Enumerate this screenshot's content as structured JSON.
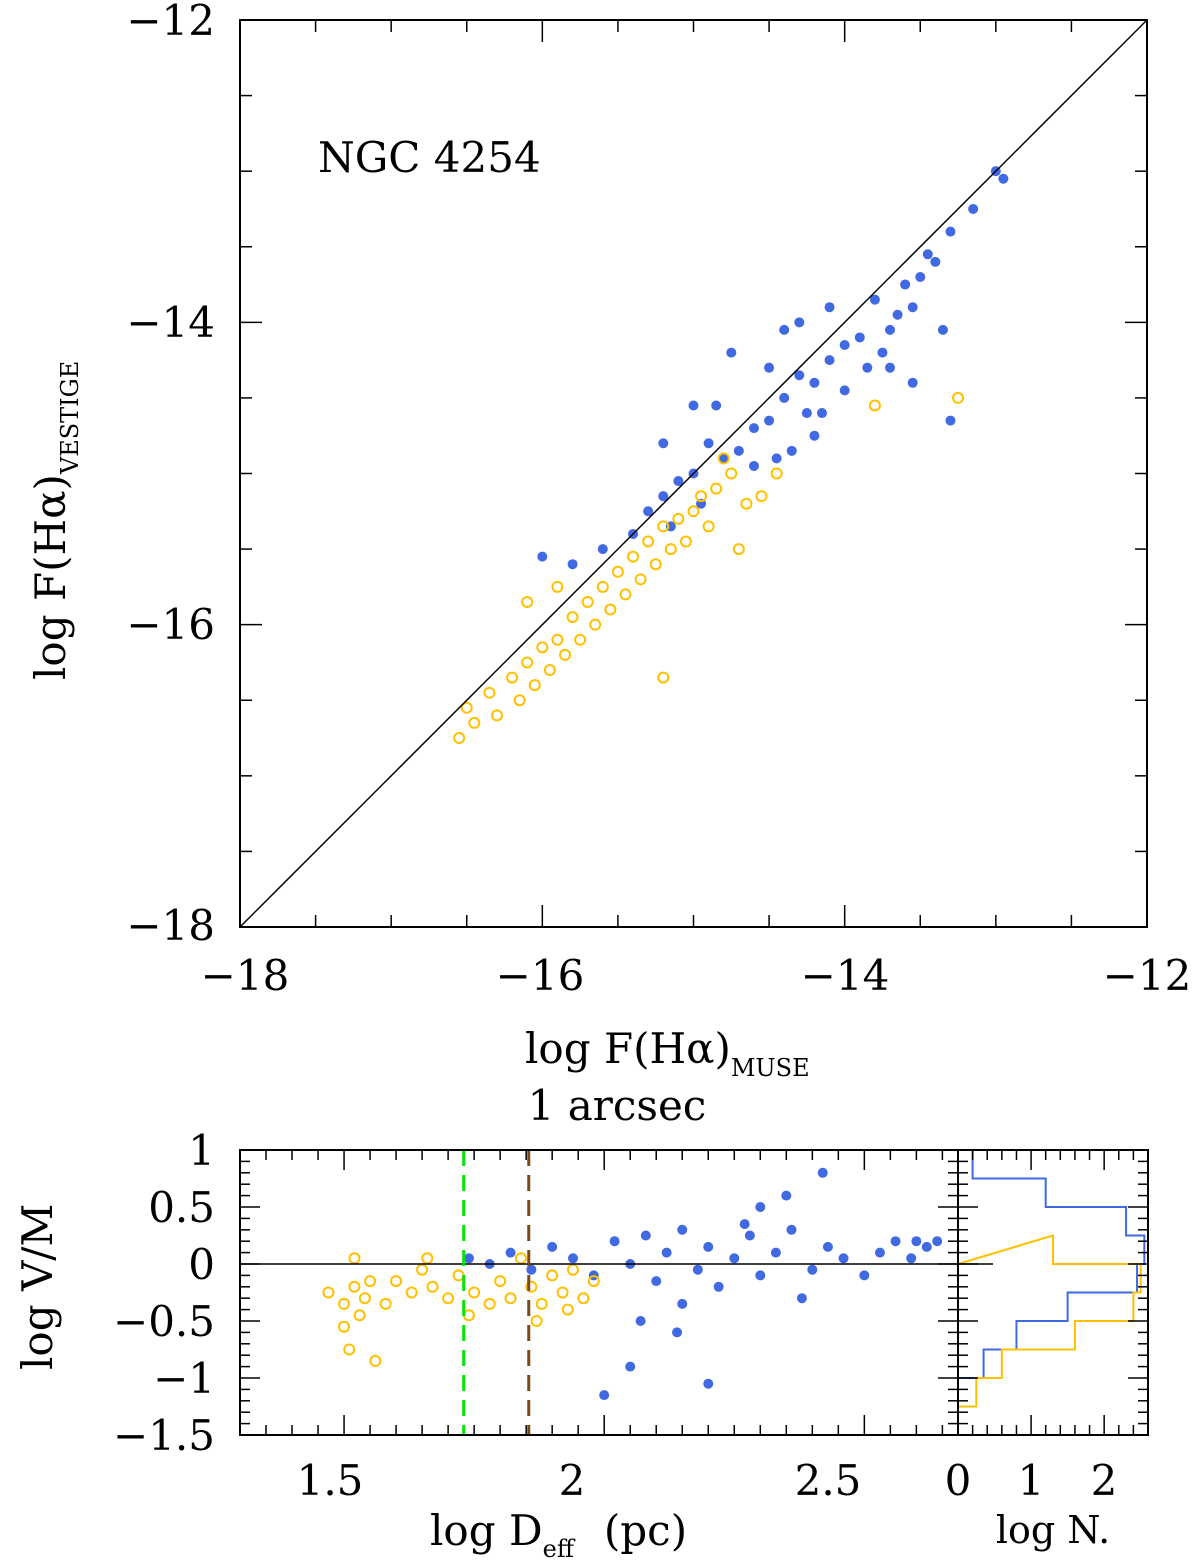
{
  "colors": {
    "filled": "#4169e1",
    "open": "#ffc000",
    "green_line": "#00e600",
    "brown_line": "#7a4a14"
  },
  "chart_data": [
    {
      "type": "scatter",
      "annotation": "NGC 4254",
      "xlabel": {
        "main": "log F(Hα)",
        "sub": "MUSE"
      },
      "ylabel": {
        "main": "log F(Hα)",
        "sub": "VESTIGE"
      },
      "xlim": [
        -18,
        -12
      ],
      "ylim": [
        -18,
        -12
      ],
      "xticks": [
        "−18",
        "−16",
        "−14",
        "−12"
      ],
      "yticks": [
        "−18",
        "−16",
        "−14",
        "−12"
      ],
      "reference_line": "1:1",
      "series": [
        {
          "marker": "filled-circle",
          "color": "#4169e1",
          "points": [
            [
              -13.0,
              -13.0
            ],
            [
              -12.95,
              -13.05
            ],
            [
              -13.15,
              -13.25
            ],
            [
              -13.3,
              -13.4
            ],
            [
              -13.45,
              -13.55
            ],
            [
              -13.4,
              -13.6
            ],
            [
              -13.6,
              -13.75
            ],
            [
              -13.55,
              -13.9
            ],
            [
              -13.8,
              -13.85
            ],
            [
              -13.7,
              -14.05
            ],
            [
              -13.9,
              -14.1
            ],
            [
              -14.0,
              -14.15
            ],
            [
              -13.85,
              -14.3
            ],
            [
              -14.1,
              -14.25
            ],
            [
              -14.2,
              -14.4
            ],
            [
              -14.3,
              -14.35
            ],
            [
              -14.25,
              -14.6
            ],
            [
              -14.4,
              -14.5
            ],
            [
              -14.5,
              -14.65
            ],
            [
              -14.6,
              -14.7
            ],
            [
              -14.45,
              -14.9
            ],
            [
              -14.7,
              -14.85
            ],
            [
              -14.8,
              -14.9
            ],
            [
              -14.9,
              -14.8
            ],
            [
              -15.0,
              -15.0
            ],
            [
              -14.95,
              -15.2
            ],
            [
              -15.1,
              -15.05
            ],
            [
              -15.2,
              -15.15
            ],
            [
              -15.15,
              -15.35
            ],
            [
              -15.3,
              -15.25
            ],
            [
              -15.4,
              -15.4
            ],
            [
              -15.6,
              -15.5
            ],
            [
              -15.8,
              -15.6
            ],
            [
              -16.0,
              -15.55
            ],
            [
              -14.85,
              -14.55
            ],
            [
              -14.5,
              -14.3
            ],
            [
              -14.3,
              -14.0
            ],
            [
              -14.6,
              -14.95
            ],
            [
              -14.35,
              -14.85
            ],
            [
              -14.2,
              -14.75
            ],
            [
              -14.0,
              -14.45
            ],
            [
              -13.75,
              -14.2
            ],
            [
              -13.5,
              -13.7
            ],
            [
              -13.35,
              -14.05
            ],
            [
              -13.55,
              -14.4
            ],
            [
              -13.3,
              -14.65
            ],
            [
              -14.15,
              -14.6
            ],
            [
              -15.0,
              -14.55
            ],
            [
              -15.2,
              -14.8
            ],
            [
              -14.75,
              -14.2
            ],
            [
              -14.4,
              -14.05
            ],
            [
              -14.1,
              -13.9
            ],
            [
              -13.7,
              -14.3
            ],
            [
              -13.65,
              -13.95
            ]
          ]
        },
        {
          "marker": "open-circle",
          "color": "#ffc000",
          "points": [
            [
              -16.5,
              -16.55
            ],
            [
              -16.45,
              -16.65
            ],
            [
              -16.35,
              -16.45
            ],
            [
              -16.3,
              -16.6
            ],
            [
              -16.2,
              -16.35
            ],
            [
              -16.15,
              -16.5
            ],
            [
              -16.1,
              -16.25
            ],
            [
              -16.05,
              -16.4
            ],
            [
              -16.0,
              -16.15
            ],
            [
              -15.95,
              -16.3
            ],
            [
              -15.9,
              -16.1
            ],
            [
              -15.85,
              -16.2
            ],
            [
              -15.8,
              -15.95
            ],
            [
              -15.75,
              -16.1
            ],
            [
              -15.7,
              -15.85
            ],
            [
              -15.65,
              -16.0
            ],
            [
              -15.6,
              -15.75
            ],
            [
              -15.55,
              -15.9
            ],
            [
              -15.5,
              -15.65
            ],
            [
              -15.45,
              -15.8
            ],
            [
              -15.4,
              -15.55
            ],
            [
              -15.35,
              -15.7
            ],
            [
              -15.3,
              -15.45
            ],
            [
              -15.25,
              -15.6
            ],
            [
              -15.2,
              -15.35
            ],
            [
              -15.15,
              -15.5
            ],
            [
              -15.1,
              -15.3
            ],
            [
              -15.05,
              -15.45
            ],
            [
              -15.0,
              -15.25
            ],
            [
              -14.95,
              -15.15
            ],
            [
              -14.9,
              -15.35
            ],
            [
              -14.85,
              -15.1
            ],
            [
              -14.75,
              -15.0
            ],
            [
              -14.65,
              -15.2
            ],
            [
              -14.55,
              -15.15
            ],
            [
              -14.7,
              -15.5
            ],
            [
              -14.45,
              -15.0
            ],
            [
              -14.8,
              -14.9
            ],
            [
              -15.9,
              -15.75
            ],
            [
              -16.1,
              -15.85
            ],
            [
              -15.2,
              -16.35
            ],
            [
              -13.8,
              -14.55
            ],
            [
              -13.25,
              -14.5
            ],
            [
              -16.55,
              -16.75
            ]
          ]
        }
      ]
    },
    {
      "type": "scatter",
      "title": "1 arcsec",
      "xlabel": {
        "main": "log D",
        "sub": "eff",
        "unit": "(pc)"
      },
      "ylabel": "log V/M",
      "xlim": [
        1.3,
        2.68
      ],
      "ylim": [
        -1.5,
        1.0
      ],
      "xticks": [
        "1.5",
        "2",
        "2.5"
      ],
      "yticks": [
        "1",
        "0.5",
        "0",
        "−0.5",
        "−1",
        "−1.5"
      ],
      "vlines": [
        {
          "x": 1.73,
          "color": "#00e600",
          "style": "dashed"
        },
        {
          "x": 1.855,
          "color": "#7a4a14",
          "style": "dashed"
        }
      ],
      "hline": 0,
      "series": [
        {
          "marker": "filled-circle",
          "color": "#4169e1",
          "points": [
            [
              1.74,
              0.05
            ],
            [
              1.78,
              0.0
            ],
            [
              1.82,
              0.1
            ],
            [
              1.86,
              -0.05
            ],
            [
              1.9,
              0.15
            ],
            [
              1.94,
              0.05
            ],
            [
              1.98,
              -0.1
            ],
            [
              2.02,
              0.2
            ],
            [
              2.05,
              0.0
            ],
            [
              2.08,
              0.25
            ],
            [
              2.1,
              -0.15
            ],
            [
              2.12,
              0.1
            ],
            [
              2.15,
              0.3
            ],
            [
              2.18,
              -0.05
            ],
            [
              2.2,
              0.15
            ],
            [
              2.22,
              -0.2
            ],
            [
              2.25,
              0.05
            ],
            [
              2.28,
              0.25
            ],
            [
              2.3,
              -0.1
            ],
            [
              2.33,
              0.1
            ],
            [
              2.36,
              0.3
            ],
            [
              2.4,
              -0.05
            ],
            [
              2.43,
              0.15
            ],
            [
              2.46,
              0.05
            ],
            [
              2.5,
              -0.1
            ],
            [
              2.53,
              0.1
            ],
            [
              2.56,
              0.2
            ],
            [
              2.59,
              0.05
            ],
            [
              2.62,
              0.15
            ],
            [
              2.42,
              0.8
            ],
            [
              2.35,
              0.6
            ],
            [
              2.3,
              0.5
            ],
            [
              2.0,
              -1.15
            ],
            [
              2.2,
              -1.05
            ],
            [
              2.07,
              -0.5
            ],
            [
              2.14,
              -0.6
            ],
            [
              2.05,
              -0.9
            ],
            [
              2.27,
              0.35
            ],
            [
              2.38,
              -0.3
            ],
            [
              2.15,
              -0.35
            ],
            [
              2.6,
              0.2
            ],
            [
              2.64,
              0.2
            ]
          ]
        },
        {
          "marker": "open-circle",
          "color": "#ffc000",
          "points": [
            [
              1.47,
              -0.25
            ],
            [
              1.5,
              -0.35
            ],
            [
              1.52,
              -0.2
            ],
            [
              1.53,
              -0.45
            ],
            [
              1.54,
              -0.3
            ],
            [
              1.55,
              -0.15
            ],
            [
              1.5,
              -0.55
            ],
            [
              1.52,
              0.05
            ],
            [
              1.56,
              -0.85
            ],
            [
              1.51,
              -0.75
            ],
            [
              1.58,
              -0.35
            ],
            [
              1.6,
              -0.15
            ],
            [
              1.63,
              -0.25
            ],
            [
              1.65,
              -0.05
            ],
            [
              1.67,
              -0.2
            ],
            [
              1.7,
              -0.3
            ],
            [
              1.72,
              -0.1
            ],
            [
              1.75,
              -0.25
            ],
            [
              1.78,
              -0.35
            ],
            [
              1.8,
              -0.15
            ],
            [
              1.82,
              -0.3
            ],
            [
              1.84,
              0.05
            ],
            [
              1.86,
              -0.2
            ],
            [
              1.88,
              -0.35
            ],
            [
              1.9,
              -0.1
            ],
            [
              1.92,
              -0.25
            ],
            [
              1.94,
              -0.05
            ],
            [
              1.96,
              -0.3
            ],
            [
              1.98,
              -0.15
            ],
            [
              1.66,
              0.05
            ],
            [
              1.74,
              -0.45
            ],
            [
              1.87,
              -0.5
            ],
            [
              1.93,
              -0.4
            ]
          ]
        }
      ]
    },
    {
      "type": "histogram",
      "xlabel": "log N.",
      "xticks": [
        "0",
        "1",
        "2"
      ],
      "xlim": [
        0,
        2.6
      ],
      "series": [
        {
          "color": "#4169e1",
          "orientation": "horizontal",
          "bins": [
            [
              1.0,
              0.75,
              0.2
            ],
            [
              0.75,
              0.5,
              1.2
            ],
            [
              0.5,
              0.25,
              2.3
            ],
            [
              0.25,
              0.0,
              2.55
            ],
            [
              0.0,
              -0.25,
              2.45
            ],
            [
              -0.25,
              -0.5,
              1.5
            ],
            [
              -0.5,
              -0.75,
              0.8
            ],
            [
              -0.75,
              -1.0,
              0.35
            ],
            [
              -1.0,
              -1.5,
              0.0
            ]
          ]
        },
        {
          "color": "#ffc000",
          "orientation": "horizontal",
          "bins": [
            [
              0.25,
              0.0,
              0.0
            ],
            [
              0.25,
              0.0,
              1.3
            ],
            [
              0.0,
              -0.25,
              2.5
            ],
            [
              -0.25,
              -0.5,
              2.4
            ],
            [
              -0.5,
              -0.75,
              1.6
            ],
            [
              -0.75,
              -1.0,
              0.6
            ],
            [
              -1.0,
              -1.25,
              0.25
            ],
            [
              -1.25,
              -1.5,
              0.0
            ]
          ]
        }
      ]
    }
  ]
}
